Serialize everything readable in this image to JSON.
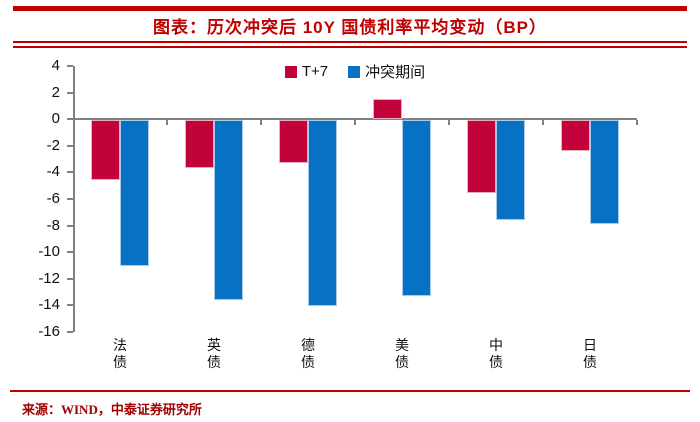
{
  "header": {
    "title": "图表：历次冲突后 10Y 国债利率平均变动（BP）"
  },
  "chart_data": {
    "type": "bar",
    "title": "历次冲突后10Y国债利率平均变动（BP）",
    "unit": "BP",
    "categories": [
      "法债",
      "英债",
      "德债",
      "美债",
      "中债",
      "日债"
    ],
    "series": [
      {
        "name": "T+7",
        "color": "#c2023a",
        "values": [
          -4.5,
          -3.6,
          -3.2,
          1.5,
          -5.5,
          -2.3
        ]
      },
      {
        "name": "冲突期间",
        "color": "#0772c3",
        "values": [
          -11.0,
          -13.5,
          -14.0,
          -13.2,
          -7.5,
          -7.8
        ]
      }
    ],
    "ylim": [
      -16,
      4
    ],
    "ytick_step": 2,
    "yticks": [
      4,
      2,
      0,
      -2,
      -4,
      -6,
      -8,
      -10,
      -12,
      -14,
      -16
    ],
    "legend_position": "top-center",
    "grid": false
  },
  "footer": {
    "source": "来源：WIND，中泰证券研究所"
  },
  "colors": {
    "accent_red": "#c00000",
    "bar_red": "#c2023a",
    "bar_blue": "#0772c3",
    "axis_gray": "#808080",
    "text": "#111111",
    "source_text": "#a00000"
  }
}
